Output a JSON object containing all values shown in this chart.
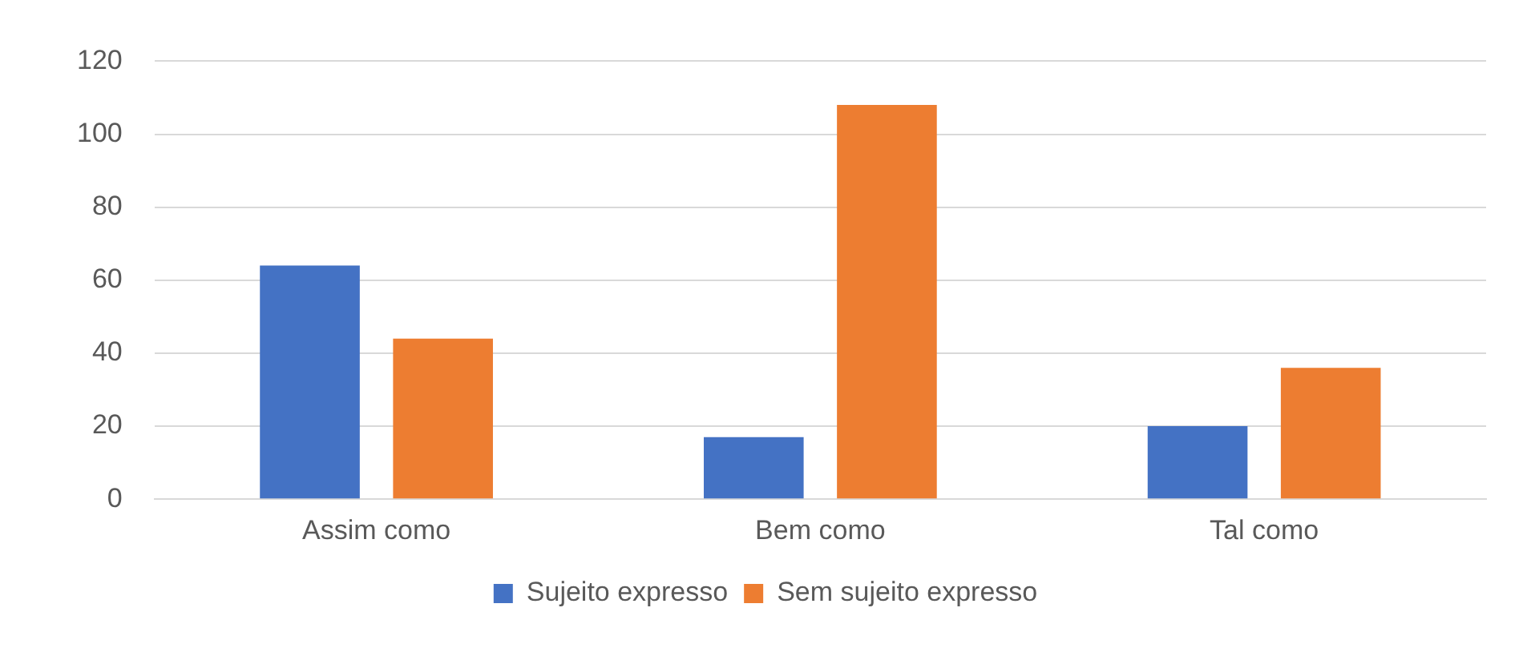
{
  "chart_data": {
    "type": "bar",
    "categories": [
      "Assim como",
      "Bem como",
      "Tal como"
    ],
    "series": [
      {
        "name": "Sujeito expresso",
        "color": "#4472c4",
        "values": [
          64,
          17,
          20
        ]
      },
      {
        "name": "Sem sujeito expresso",
        "color": "#ed7d31",
        "values": [
          44,
          108,
          36
        ]
      }
    ],
    "ylim": [
      0,
      120
    ],
    "yticks": [
      0,
      20,
      40,
      60,
      80,
      100,
      120
    ],
    "grid": "y",
    "legend": "bottom"
  }
}
